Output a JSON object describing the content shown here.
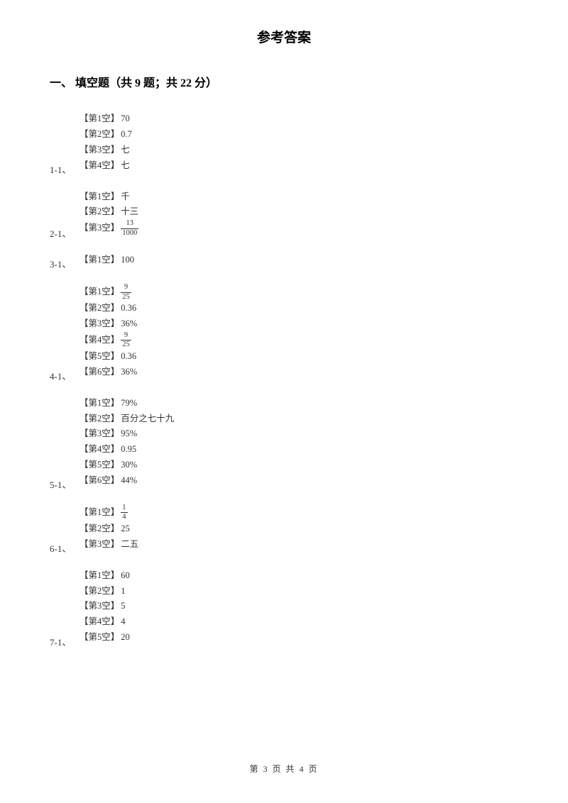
{
  "page_title": "参考答案",
  "section_title": "一、 填空题（共 9 题；共 22 分）",
  "questions": [
    {
      "number": "1-1、",
      "answers": [
        {
          "label": "【第1空】",
          "value": "70"
        },
        {
          "label": "【第2空】",
          "value": "0.7"
        },
        {
          "label": "【第3空】",
          "value": "七"
        },
        {
          "label": "【第4空】",
          "value": "七"
        }
      ]
    },
    {
      "number": "2-1、",
      "answers": [
        {
          "label": "【第1空】",
          "value": "千"
        },
        {
          "label": "【第2空】",
          "value": "十三"
        },
        {
          "label": "【第3空】",
          "fraction": {
            "num": "13",
            "den": "1000"
          }
        }
      ]
    },
    {
      "number": "3-1、",
      "answers": [
        {
          "label": "【第1空】",
          "value": "100"
        }
      ]
    },
    {
      "number": "4-1、",
      "answers": [
        {
          "label": "【第1空】",
          "fraction": {
            "num": "9",
            "den": "25"
          }
        },
        {
          "label": "【第2空】",
          "value": "0.36"
        },
        {
          "label": "【第3空】",
          "value": "36%"
        },
        {
          "label": "【第4空】",
          "fraction": {
            "num": "9",
            "den": "25"
          }
        },
        {
          "label": "【第5空】",
          "value": "0.36"
        },
        {
          "label": "【第6空】",
          "value": "36%"
        }
      ]
    },
    {
      "number": "5-1、",
      "answers": [
        {
          "label": "【第1空】",
          "value": "79%"
        },
        {
          "label": "【第2空】",
          "value": "百分之七十九"
        },
        {
          "label": "【第3空】",
          "value": "95%"
        },
        {
          "label": "【第4空】",
          "value": "0.95"
        },
        {
          "label": "【第5空】",
          "value": "30%"
        },
        {
          "label": "【第6空】",
          "value": "44%"
        }
      ]
    },
    {
      "number": "6-1、",
      "answers": [
        {
          "label": "【第1空】",
          "fraction": {
            "num": "1",
            "den": "4"
          }
        },
        {
          "label": "【第2空】",
          "value": "25"
        },
        {
          "label": "【第3空】",
          "value": "二五"
        }
      ]
    },
    {
      "number": "7-1、",
      "answers": [
        {
          "label": "【第1空】",
          "value": "60"
        },
        {
          "label": "【第2空】",
          "value": "1"
        },
        {
          "label": "【第3空】",
          "value": "5"
        },
        {
          "label": "【第4空】",
          "value": "4"
        },
        {
          "label": "【第5空】",
          "value": "20"
        }
      ]
    }
  ],
  "footer": "第 3 页 共 4 页"
}
